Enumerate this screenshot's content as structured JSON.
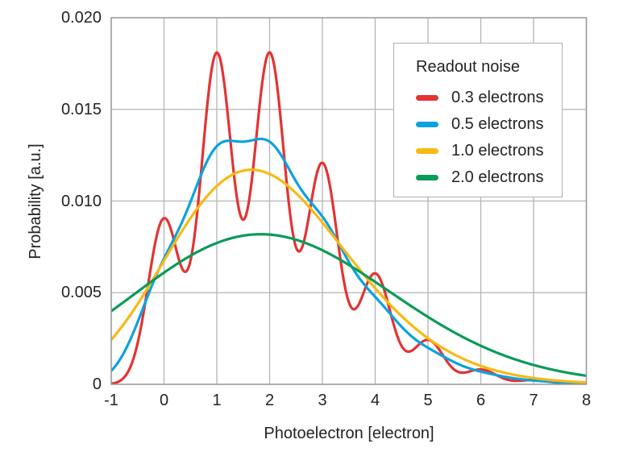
{
  "figure": {
    "background": "#ffffff",
    "text_color": "#262223",
    "grid_color": "#b4b4b4",
    "border_color": "#9c9c9c"
  },
  "chart_data": {
    "type": "line",
    "title": "",
    "xlabel": "Photoelectron [electron]",
    "ylabel": "Probability [a.u.]",
    "xlim": [
      -1,
      8
    ],
    "ylim": [
      0,
      0.02
    ],
    "x_ticks": [
      -1,
      0,
      1,
      2,
      3,
      4,
      5,
      6,
      7,
      8
    ],
    "x_tick_labels": [
      "-1",
      "0",
      "1",
      "2",
      "3",
      "4",
      "5",
      "6",
      "7",
      "8"
    ],
    "y_ticks": [
      0,
      0.005,
      0.01,
      0.015,
      0.02
    ],
    "y_tick_labels": [
      "0",
      "0.005",
      "0.010",
      "0.015",
      "0.020"
    ],
    "grid": true,
    "legend": {
      "title": "Readout noise",
      "position": "upper right"
    },
    "model": {
      "description": "Photon-counting statistics: Poisson photon-number distribution (mean 2 photoelectrons) convolved with Gaussian readout noise of width sigma electrons; y(x) = bin_width * sum_k Poisson(k; mean) * Normal(x; mean=k, sd=sigma)",
      "poisson_mean": 2,
      "bin_width": 0.05,
      "k_max": 12,
      "sample_step": 0.02
    },
    "x_sample_points": [
      -1,
      0,
      1,
      2,
      3,
      4,
      5,
      6,
      7,
      8
    ],
    "series": [
      {
        "name": "0.3 electrons",
        "sigma": 0.3,
        "color": "#e23433",
        "values_at_sample_points": [
          3e-05,
          0.00907,
          0.0181,
          0.01811,
          0.01209,
          0.00605,
          0.00242,
          0.00081,
          0.00023,
          6e-05
        ]
      },
      {
        "name": "0.5 electrons",
        "sigma": 0.5,
        "color": "#0da2de",
        "values_at_sample_points": [
          0.00073,
          0.00686,
          0.01299,
          0.01324,
          0.00915,
          0.00477,
          0.00199,
          0.00069,
          0.00021,
          5e-05
        ]
      },
      {
        "name": "1.0 electrons",
        "sigma": 1.0,
        "color": "#f8b913",
        "values_at_sample_points": [
          0.00243,
          0.00675,
          0.01082,
          0.01147,
          0.00883,
          0.00524,
          0.00252,
          0.00101,
          0.00034,
          0.0001
        ]
      },
      {
        "name": "2.0 electrons",
        "sigma": 2.0,
        "color": "#0b9b58",
        "values_at_sample_points": [
          0.00399,
          0.00609,
          0.00771,
          0.00817,
          0.00731,
          0.00559,
          0.00368,
          0.0021,
          0.00105,
          0.00047
        ]
      }
    ]
  }
}
